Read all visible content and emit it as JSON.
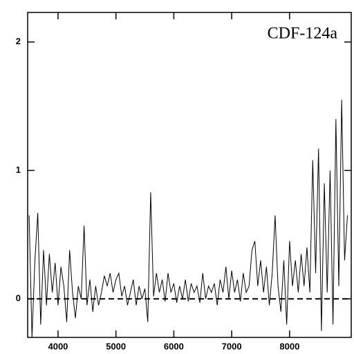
{
  "chart_data": {
    "type": "line",
    "annotation": "CDF-124a",
    "x": [
      3500,
      3550,
      3600,
      3650,
      3700,
      3750,
      3800,
      3850,
      3900,
      3950,
      4000,
      4050,
      4100,
      4150,
      4200,
      4250,
      4300,
      4350,
      4400,
      4450,
      4500,
      4550,
      4600,
      4650,
      4700,
      4750,
      4800,
      4850,
      4900,
      4950,
      5000,
      5050,
      5100,
      5150,
      5200,
      5250,
      5300,
      5350,
      5400,
      5450,
      5500,
      5550,
      5600,
      5650,
      5700,
      5750,
      5800,
      5850,
      5900,
      5950,
      6000,
      6050,
      6100,
      6150,
      6200,
      6250,
      6300,
      6350,
      6400,
      6450,
      6500,
      6550,
      6600,
      6650,
      6700,
      6750,
      6800,
      6850,
      6900,
      6950,
      7000,
      7050,
      7100,
      7150,
      7200,
      7250,
      7300,
      7350,
      7400,
      7450,
      7500,
      7550,
      7600,
      7650,
      7700,
      7750,
      7800,
      7850,
      7900,
      7950,
      8000,
      8050,
      8100,
      8150,
      8200,
      8250,
      8300,
      8350,
      8400,
      8450,
      8500,
      8550,
      8600,
      8650,
      8700,
      8750,
      8800,
      8850,
      8900,
      8950,
      9000
    ],
    "series": [
      {
        "color": "#000000",
        "values": [
          0.65,
          -0.3,
          0.3,
          0.67,
          -0.2,
          0.38,
          -0.05,
          0.35,
          0.05,
          0.28,
          -0.05,
          0.25,
          0.1,
          -0.18,
          0.38,
          0.05,
          -0.15,
          0.1,
          0.0,
          0.57,
          -0.05,
          0.15,
          -0.1,
          0.1,
          -0.05,
          0.05,
          0.18,
          0.1,
          0.2,
          0.05,
          0.15,
          0.2,
          0.02,
          0.1,
          -0.05,
          0.05,
          0.15,
          -0.05,
          0.1,
          0.0,
          0.08,
          -0.18,
          0.83,
          0.02,
          0.2,
          0.05,
          0.15,
          -0.02,
          0.2,
          0.05,
          0.12,
          -0.03,
          0.1,
          0.0,
          0.15,
          -0.02,
          0.12,
          0.05,
          0.1,
          -0.03,
          0.2,
          0.0,
          0.1,
          0.05,
          0.12,
          -0.05,
          0.15,
          0.05,
          0.25,
          0.0,
          0.22,
          0.05,
          0.15,
          -0.02,
          0.2,
          0.05,
          0.1,
          0.38,
          0.45,
          0.1,
          0.3,
          0.05,
          0.25,
          -0.05,
          0.2,
          0.65,
          0.1,
          -0.1,
          0.3,
          -0.2,
          0.45,
          0.1,
          0.3,
          0.05,
          0.35,
          0.1,
          0.4,
          0.05,
          1.08,
          0.2,
          1.17,
          -0.25,
          0.9,
          0.05,
          1.0,
          -0.2,
          1.4,
          0.1,
          1.55,
          0.3,
          0.65
        ]
      }
    ],
    "xlim": [
      3475,
      9065
    ],
    "ylim": [
      -0.3,
      2.23
    ],
    "xticks": [
      4000,
      5000,
      6000,
      7000,
      8000
    ],
    "yticks": [
      0,
      1,
      2
    ],
    "reference_line": 0
  }
}
